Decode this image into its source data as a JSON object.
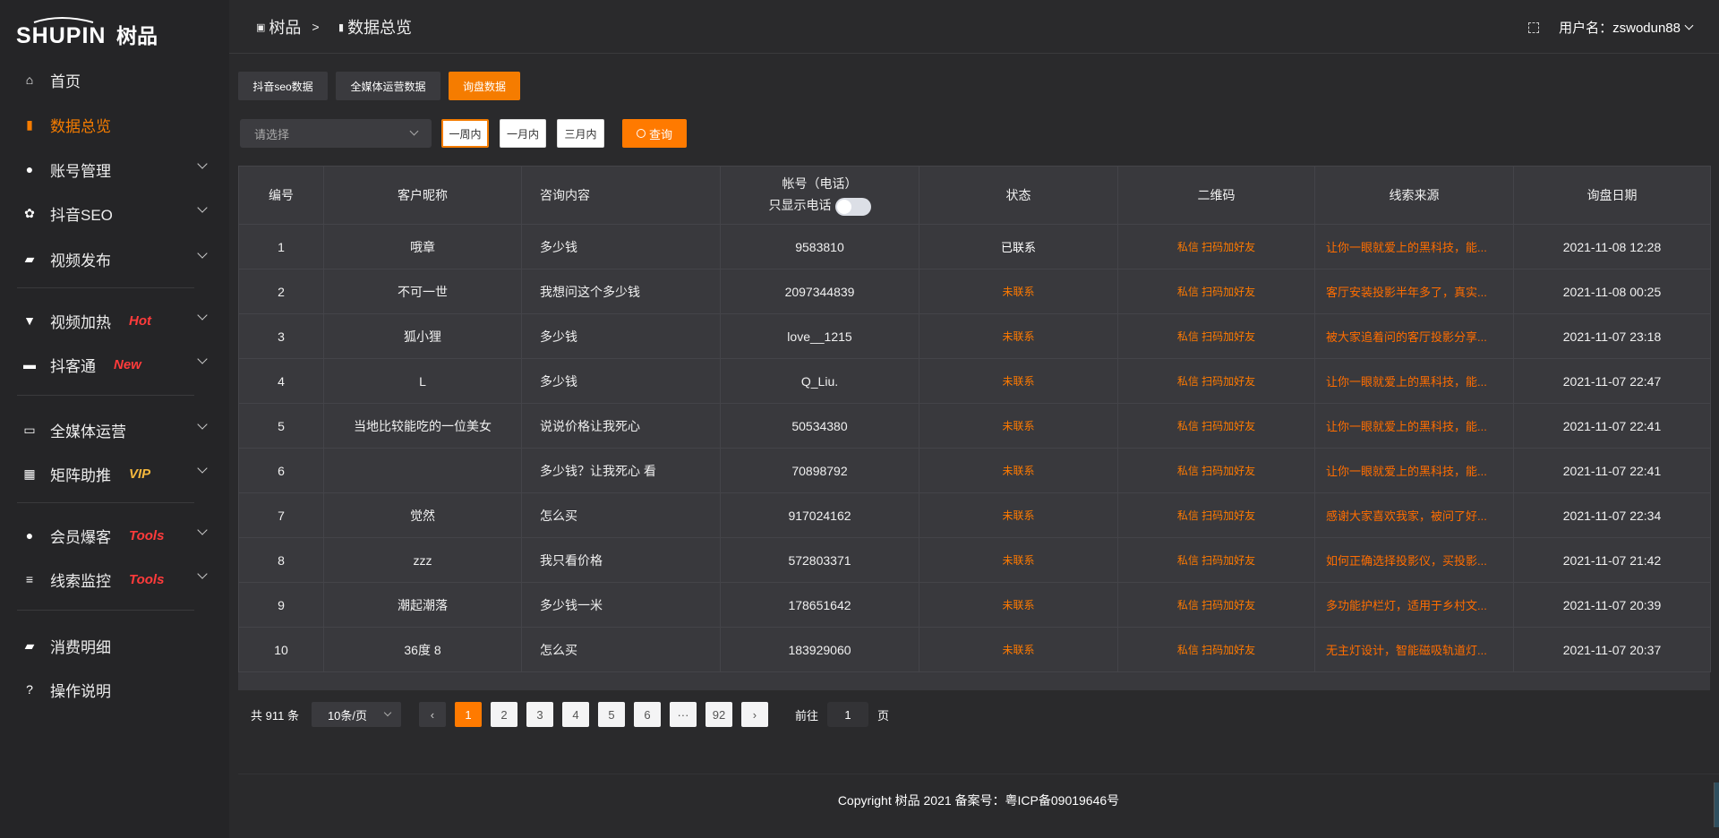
{
  "brand": {
    "logo_text": "SHUPIN 树品"
  },
  "breadcrumb": {
    "root": "树品",
    "separator": ">",
    "current": "数据总览"
  },
  "header": {
    "user_label": "用户名：zswodun88"
  },
  "sidebar": {
    "items": [
      {
        "label": "首页",
        "icon": "home-icon"
      },
      {
        "label": "数据总览",
        "icon": "bar-chart-icon",
        "active": true
      },
      {
        "label": "账号管理",
        "icon": "user-icon",
        "chevron": true
      },
      {
        "label": "抖音SEO",
        "icon": "gear-icon",
        "chevron": true
      },
      {
        "label": "视频发布",
        "icon": "camera-icon",
        "chevron": true
      },
      {
        "label": "视频加热",
        "icon": "boost-icon",
        "badge": "Hot",
        "badge_color": "#ff3b3b",
        "chevron": true
      },
      {
        "label": "抖客通",
        "icon": "chat-icon",
        "badge": "New",
        "badge_color": "#ff3b3b",
        "chevron": true
      },
      {
        "label": "全媒体运营",
        "icon": "monitor-icon",
        "chevron": true
      },
      {
        "label": "矩阵助推",
        "icon": "grid-icon",
        "badge": "VIP",
        "badge_color": "#f5b83d",
        "chevron": true
      },
      {
        "label": "会员爆客",
        "icon": "member-icon",
        "badge": "Tools",
        "badge_color": "#ff3b3b",
        "chevron": true
      },
      {
        "label": "线索监控",
        "icon": "sliders-icon",
        "badge": "Tools",
        "badge_color": "#ff3b3b",
        "chevron": true
      },
      {
        "label": "消费明细",
        "icon": "wallet-icon"
      },
      {
        "label": "操作说明",
        "icon": "help-icon"
      }
    ]
  },
  "tabs": [
    {
      "label": "抖音seo数据"
    },
    {
      "label": "全媒体运营数据"
    },
    {
      "label": "询盘数据",
      "active": true
    }
  ],
  "filter": {
    "select_placeholder": "请选择",
    "ranges": [
      "一周内",
      "一月内",
      "三月内"
    ],
    "active_range": "一周内",
    "query_label": "查询"
  },
  "table": {
    "headers": [
      "编号",
      "客户昵称",
      "咨询内容",
      "帐号（电话）",
      "状态",
      "二维码",
      "线索来源",
      "询盘日期"
    ],
    "phone_toggle_label": "只显示电话",
    "phone_toggle_on": false,
    "rows": [
      [
        "1",
        "哦章",
        "多少钱",
        "9583810",
        "已联系",
        "私信 扫码加好友",
        "让你一眼就爱上的黑科技，能...",
        "2021-11-08 12:28"
      ],
      [
        "2",
        "不可一世",
        "我想问这个多少钱",
        "2097344839",
        "未联系",
        "私信 扫码加好友",
        "客厅安装投影半年多了，真实...",
        "2021-11-08 00:25"
      ],
      [
        "3",
        "狐小狸",
        "多少钱",
        "love__1215",
        "未联系",
        "私信 扫码加好友",
        "被大家追着问的客厅投影分享...",
        "2021-11-07 23:18"
      ],
      [
        "4",
        "L",
        "多少钱",
        "Q_Liu.",
        "未联系",
        "私信 扫码加好友",
        "让你一眼就爱上的黑科技，能...",
        "2021-11-07 22:47"
      ],
      [
        "5",
        "当地比较能吃的一位美女",
        "说说价格让我死心",
        "50534380",
        "未联系",
        "私信 扫码加好友",
        "让你一眼就爱上的黑科技，能...",
        "2021-11-07 22:41"
      ],
      [
        "6",
        "",
        "多少钱？让我死心 看",
        "70898792",
        "未联系",
        "私信 扫码加好友",
        "让你一眼就爱上的黑科技，能...",
        "2021-11-07 22:41"
      ],
      [
        "7",
        "觉然",
        "怎么买",
        "917024162",
        "未联系",
        "私信 扫码加好友",
        "感谢大家喜欢我家，被问了好...",
        "2021-11-07 22:34"
      ],
      [
        "8",
        "zzz",
        "我只看价格",
        "572803371",
        "未联系",
        "私信 扫码加好友",
        "如何正确选择投影仪，买投影...",
        "2021-11-07 21:42"
      ],
      [
        "9",
        "潮起潮落",
        "多少钱一米",
        "178651642",
        "未联系",
        "私信 扫码加好友",
        "多功能护栏灯，适用于乡村文...",
        "2021-11-07 20:39"
      ],
      [
        "10",
        "36度 8",
        "怎么买",
        "183929060",
        "未联系",
        "私信 扫码加好友",
        "无主灯设计，智能磁吸轨道灯...",
        "2021-11-07 20:37"
      ]
    ]
  },
  "pagination": {
    "total_label": "共 911 条",
    "page_size": "10条/页",
    "pages": [
      "1",
      "2",
      "3",
      "4",
      "5",
      "6",
      "···",
      "92"
    ],
    "current": "1",
    "goto_label": "前往",
    "goto_value": "1",
    "page_suffix": "页"
  },
  "footer": {
    "copyright": "Copyright 树品 2021 备案号：粤ICP备09019646号"
  },
  "colors": {
    "accent": "#ff7a00",
    "sidebar_bg": "#252527",
    "table_bg": "#39393d"
  }
}
